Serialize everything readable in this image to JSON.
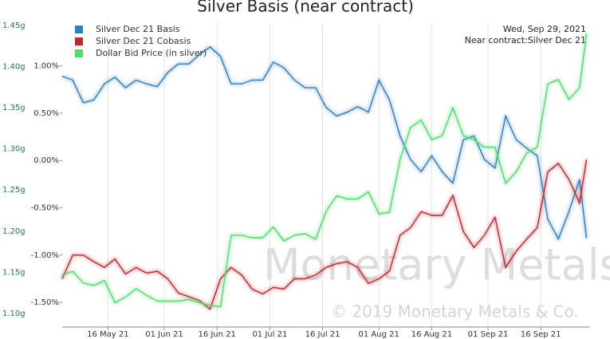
{
  "chart_data": {
    "type": "line",
    "title": "Silver Basis (near contract)",
    "annotations": [
      "Wed, Sep 29, 2021",
      "Near contract:Silver Dec 21"
    ],
    "watermark": "Monetary Metals",
    "copyright": "© 2019 Monetary Metals & Co.",
    "grid": "x",
    "legend": "upper left",
    "x": [
      "2021-05-03",
      "2021-05-06",
      "2021-05-09",
      "2021-05-12",
      "2021-05-15",
      "2021-05-18",
      "2021-05-21",
      "2021-05-24",
      "2021-05-27",
      "2021-05-30",
      "2021-06-02",
      "2021-06-05",
      "2021-06-08",
      "2021-06-11",
      "2021-06-14",
      "2021-06-17",
      "2021-06-20",
      "2021-06-23",
      "2021-06-26",
      "2021-06-29",
      "2021-07-02",
      "2021-07-05",
      "2021-07-08",
      "2021-07-11",
      "2021-07-14",
      "2021-07-17",
      "2021-07-20",
      "2021-07-23",
      "2021-07-26",
      "2021-07-29",
      "2021-08-01",
      "2021-08-04",
      "2021-08-07",
      "2021-08-10",
      "2021-08-13",
      "2021-08-16",
      "2021-08-19",
      "2021-08-22",
      "2021-08-25",
      "2021-08-28",
      "2021-08-31",
      "2021-09-03",
      "2021-09-06",
      "2021-09-09",
      "2021-09-12",
      "2021-09-15",
      "2021-09-18",
      "2021-09-21",
      "2021-09-24",
      "2021-09-27",
      "2021-09-29"
    ],
    "xlim": [
      "2021-05-03",
      "2021-09-30"
    ],
    "xticks": [
      {
        "value": "2021-05-16",
        "label": "16 May 21"
      },
      {
        "value": "2021-06-01",
        "label": "01 Jun 21"
      },
      {
        "value": "2021-06-16",
        "label": "16 Jun 21"
      },
      {
        "value": "2021-07-01",
        "label": "01 Jul 21"
      },
      {
        "value": "2021-07-16",
        "label": "16 Jul 21"
      },
      {
        "value": "2021-08-01",
        "label": "01 Aug 21"
      },
      {
        "value": "2021-08-16",
        "label": "16 Aug 21"
      },
      {
        "value": "2021-09-01",
        "label": "01 Sep 21"
      },
      {
        "value": "2021-09-16",
        "label": "16 Sep 21"
      }
    ],
    "ylim": [
      -1.76,
      1.46
    ],
    "yticks": [
      {
        "value": 1,
        "label": "1.00%"
      },
      {
        "value": 0.5,
        "label": "0.50%"
      },
      {
        "value": 0,
        "label": "0.00%"
      },
      {
        "value": -0.5,
        "label": "-0.50%"
      },
      {
        "value": -1,
        "label": "-1.00%"
      },
      {
        "value": -1.5,
        "label": "-1.50%"
      }
    ],
    "y2lim": [
      1.0835,
      1.4537
    ],
    "y2ticks": [
      {
        "value": 1.45,
        "label": "1.45g"
      },
      {
        "value": 1.4,
        "label": "1.40g"
      },
      {
        "value": 1.35,
        "label": "1.35g"
      },
      {
        "value": 1.3,
        "label": "1.30g"
      },
      {
        "value": 1.25,
        "label": "1.25g"
      },
      {
        "value": 1.2,
        "label": "1.20g"
      },
      {
        "value": 1.15,
        "label": "1.15g"
      },
      {
        "value": 1.1,
        "label": "1.10g"
      }
    ],
    "series": [
      {
        "name": "Silver Dec 21 Basis",
        "color": "#2f7fc1",
        "values": [
          0.89,
          0.85,
          0.61,
          0.64,
          0.81,
          0.88,
          0.77,
          0.85,
          0.81,
          0.78,
          0.93,
          1.02,
          1.02,
          1.12,
          1.2,
          1.1,
          0.81,
          0.81,
          0.85,
          0.85,
          1.04,
          0.98,
          0.85,
          0.77,
          0.77,
          0.56,
          0.47,
          0.51,
          0.57,
          0.51,
          0.85,
          0.64,
          0.26,
          0.01,
          -0.12,
          0.05,
          -0.12,
          -0.24,
          0.22,
          0.26,
          0.01,
          -0.08,
          0.47,
          0.22,
          0.13,
          0.05,
          -0.62,
          -0.83,
          -0.54,
          -0.2,
          -0.82
        ]
      },
      {
        "name": "Silver Dec 21 Cobasis",
        "color": "#c0282c",
        "values": [
          -1.25,
          -1.0,
          -1.0,
          -1.07,
          -1.13,
          -1.04,
          -1.2,
          -1.13,
          -1.19,
          -1.17,
          -1.25,
          -1.4,
          -1.44,
          -1.48,
          -1.57,
          -1.25,
          -1.13,
          -1.21,
          -1.36,
          -1.41,
          -1.34,
          -1.36,
          -1.25,
          -1.25,
          -1.21,
          -1.13,
          -1.09,
          -1.07,
          -1.13,
          -1.3,
          -1.25,
          -1.17,
          -0.79,
          -0.71,
          -0.54,
          -0.58,
          -0.58,
          -0.37,
          -0.75,
          -0.92,
          -0.79,
          -0.6,
          -1.13,
          -0.96,
          -0.83,
          -0.71,
          -0.12,
          -0.03,
          -0.2,
          -0.45,
          0.01
        ]
      },
      {
        "name": "Dollar Bid Price (in silver)",
        "color": "#4ddd6a",
        "axis": "y2",
        "values": [
          1.147,
          1.151,
          1.137,
          1.134,
          1.14,
          1.113,
          1.12,
          1.13,
          1.122,
          1.115,
          1.115,
          1.115,
          1.117,
          1.113,
          1.11,
          1.108,
          1.195,
          1.195,
          1.192,
          1.192,
          1.205,
          1.188,
          1.195,
          1.197,
          1.19,
          1.224,
          1.243,
          1.239,
          1.239,
          1.248,
          1.221,
          1.223,
          1.287,
          1.326,
          1.335,
          1.311,
          1.316,
          1.35,
          1.316,
          1.311,
          1.302,
          1.302,
          1.258,
          1.272,
          1.295,
          1.302,
          1.379,
          1.384,
          1.36,
          1.374,
          1.44
        ]
      }
    ]
  }
}
